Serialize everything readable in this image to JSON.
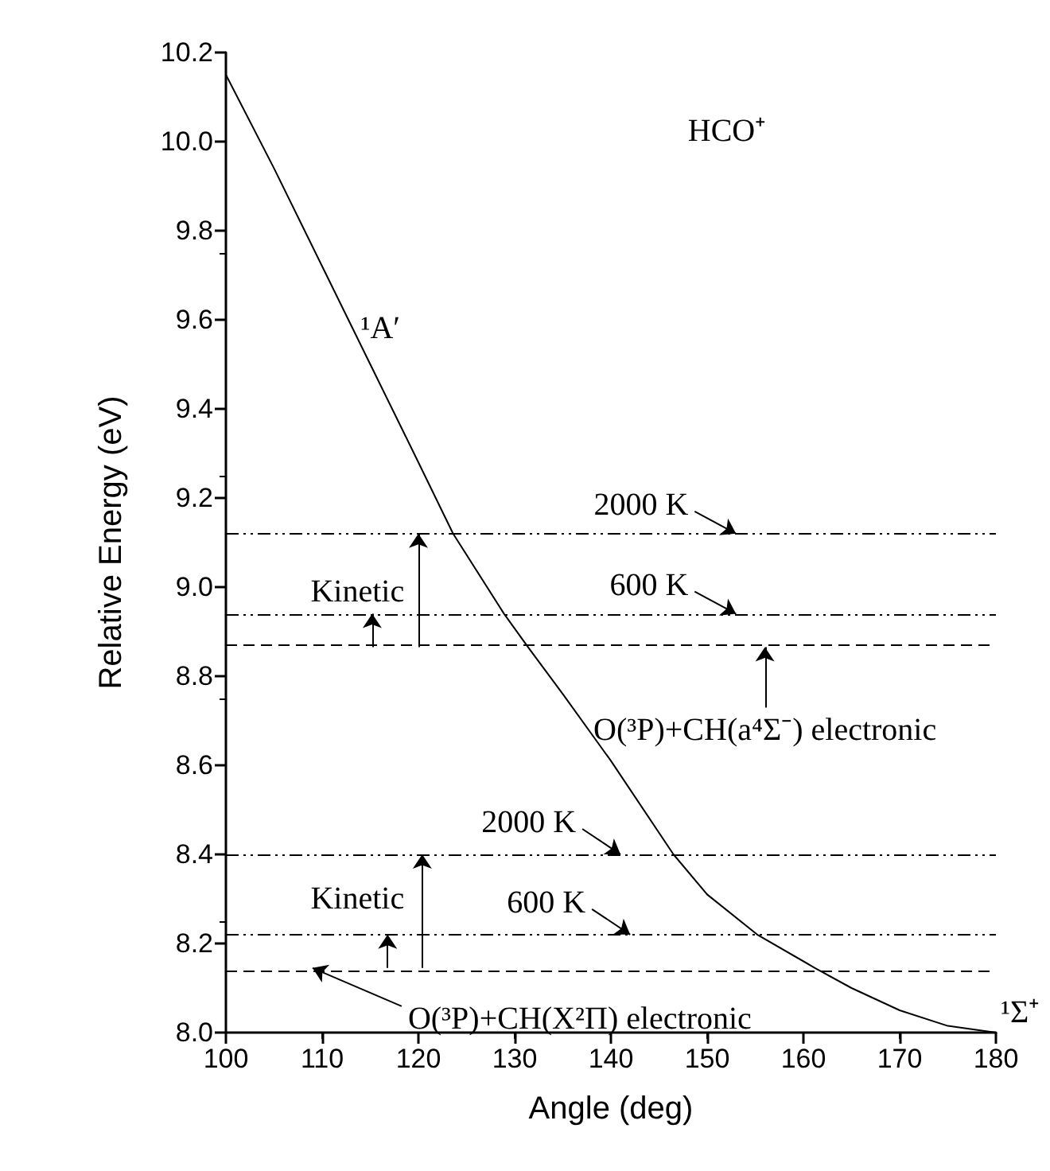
{
  "chart_data": {
    "type": "line",
    "xlabel": "Angle (deg)",
    "ylabel": "Relative Energy (eV)",
    "x": [
      100,
      105,
      110,
      115,
      120,
      123.6,
      128.9,
      131.4,
      135,
      140,
      146.5,
      150,
      155.2,
      161.2,
      165,
      170,
      175,
      180
    ],
    "series": [
      {
        "color": "#000000",
        "values": [
          10.15,
          9.94,
          9.72,
          9.5,
          9.28,
          9.12,
          8.94,
          8.865,
          8.76,
          8.61,
          8.4,
          8.31,
          8.22,
          8.145,
          8.1,
          8.05,
          8.015,
          8.0
        ]
      }
    ],
    "xlim": [
      100,
      180
    ],
    "xticks": [
      100,
      110,
      120,
      130,
      140,
      150,
      160,
      170,
      180
    ],
    "ylim": [
      8,
      10.2
    ],
    "yticks": [
      {
        "value": 8,
        "label": "8.0"
      },
      8.2,
      8.4,
      8.6,
      8.8,
      {
        "value": 9,
        "label": "9.0"
      },
      9.2,
      9.4,
      9.6,
      9.8,
      {
        "value": 10,
        "label": "10.0"
      },
      10.2
    ],
    "grid": false,
    "marker": "none",
    "line_style": "solid",
    "ref_lines": [
      {
        "axis": "y",
        "value": 9.12,
        "color": "#000000",
        "line_style": "dotted"
      },
      {
        "axis": "y",
        "value": 8.94,
        "color": "#000000",
        "line_style": "dotted"
      },
      {
        "axis": "y",
        "value": 8.865,
        "color": "#000000",
        "line_style": "dashed"
      },
      {
        "axis": "y",
        "value": 8.4,
        "color": "#000000",
        "line_style": "dotted"
      },
      {
        "axis": "y",
        "value": 8.22,
        "color": "#000000",
        "line_style": "dotted"
      },
      {
        "axis": "y",
        "value": 8.145,
        "color": "#000000",
        "line_style": "dashed"
      }
    ],
    "annotations": [
      "HCO⁺",
      {
        "text": "¹A′",
        "x": 114,
        "y": 9.58
      },
      {
        "text": "2000 K",
        "x": 153,
        "y": 9.12
      },
      {
        "text": "600 K",
        "x": 153,
        "y": 8.94
      },
      "Kinetic",
      {
        "text": "O(³P)+CH(a⁴Σ⁻) electronic",
        "x": 156,
        "y": 8.865
      },
      {
        "text": "2000 K",
        "x": 141,
        "y": 8.4
      },
      "Kinetic",
      {
        "text": "600 K",
        "x": 142,
        "y": 8.22
      },
      {
        "text": "O(³P)+CH(X²Π) electronic",
        "x": 109,
        "y": 8.145
      },
      "¹Σ⁺"
    ]
  }
}
